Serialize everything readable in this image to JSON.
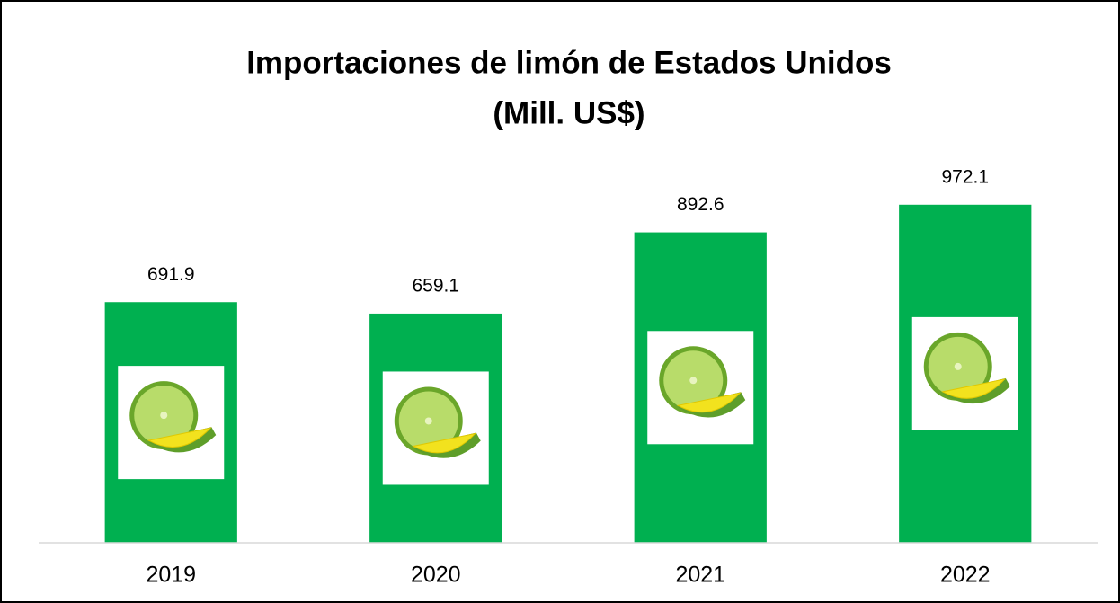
{
  "chart_data": {
    "type": "bar",
    "title": "Importaciones de limón de Estados Unidos",
    "subtitle": "(Mill. US$)",
    "categories": [
      "2019",
      "2020",
      "2021",
      "2022"
    ],
    "values": [
      691.9,
      659.1,
      892.6,
      972.1
    ],
    "color": "#00b050",
    "ylim": [
      0,
      1000
    ]
  }
}
